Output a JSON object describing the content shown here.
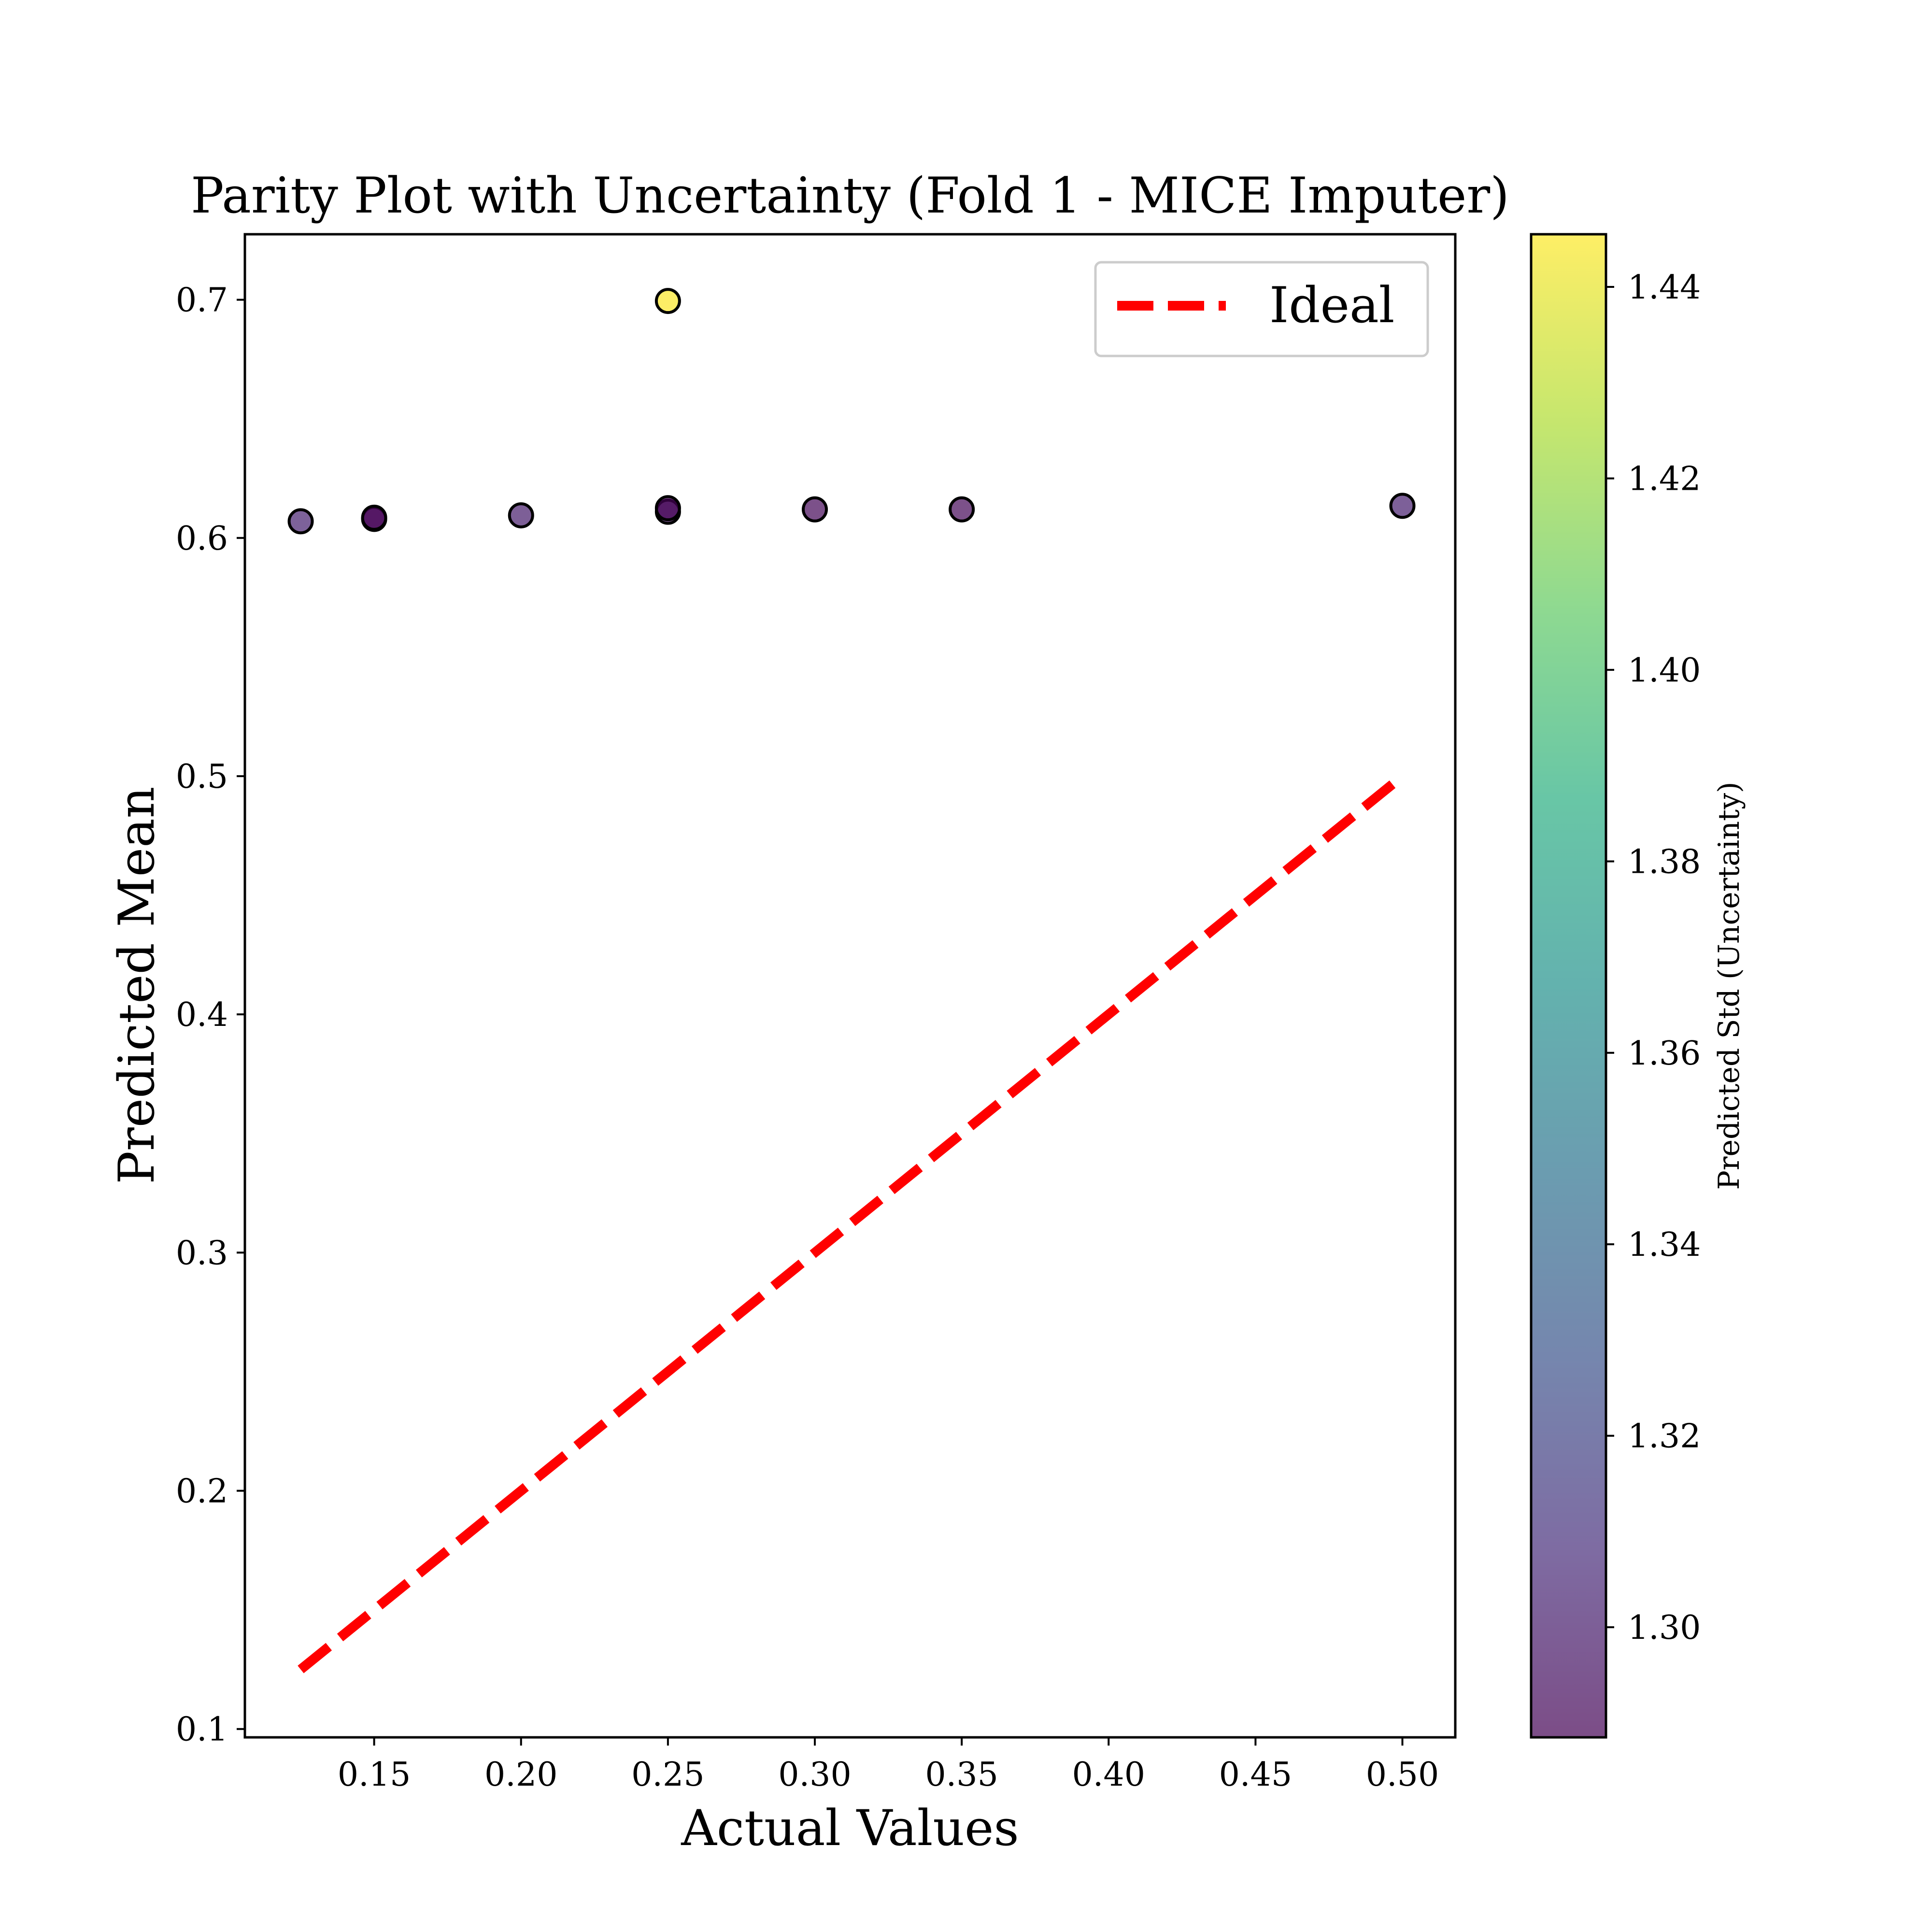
{
  "chart_data": {
    "type": "scatter",
    "title": "Parity Plot with Uncertainty (Fold 1 - MICE Imputer)",
    "xlabel": "Actual Values",
    "ylabel": "Predicted Mean",
    "xlim": [
      0.106,
      0.518
    ],
    "ylim": [
      0.0965,
      0.7275
    ],
    "x_ticks": [
      "0.15",
      "0.20",
      "0.25",
      "0.30",
      "0.35",
      "0.40",
      "0.45",
      "0.50"
    ],
    "y_ticks": [
      "0.1",
      "0.2",
      "0.3",
      "0.4",
      "0.5",
      "0.6",
      "0.7"
    ],
    "grid": false,
    "legend": {
      "position": "top-right",
      "entries": [
        "Ideal"
      ]
    },
    "ideal_line": {
      "label": "Ideal",
      "color": "#ff0000",
      "x": [
        0.125,
        0.5
      ],
      "y": [
        0.125,
        0.5
      ]
    },
    "colorbar": {
      "label": "Predicted Std (Uncertainty)",
      "range": [
        1.2885,
        1.4455
      ],
      "ticks": [
        "1.30",
        "1.32",
        "1.34",
        "1.36",
        "1.38",
        "1.40",
        "1.42",
        "1.44"
      ],
      "colormap": "viridis"
    },
    "points": [
      {
        "x": 0.125,
        "y": 0.607,
        "std": 1.302
      },
      {
        "x": 0.15,
        "y": 0.608,
        "std": 1.29
      },
      {
        "x": 0.15,
        "y": 0.6085,
        "std": 1.289
      },
      {
        "x": 0.2,
        "y": 0.6095,
        "std": 1.3
      },
      {
        "x": 0.25,
        "y": 0.611,
        "std": 1.296
      },
      {
        "x": 0.25,
        "y": 0.6125,
        "std": 1.289
      },
      {
        "x": 0.25,
        "y": 0.6995,
        "std": 1.445
      },
      {
        "x": 0.3,
        "y": 0.612,
        "std": 1.291
      },
      {
        "x": 0.35,
        "y": 0.612,
        "std": 1.291
      },
      {
        "x": 0.5,
        "y": 0.6135,
        "std": 1.301
      }
    ]
  }
}
